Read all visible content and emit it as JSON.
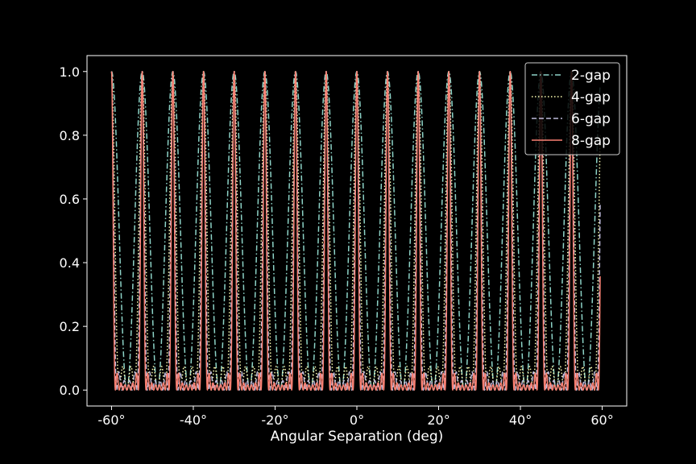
{
  "chart_data": {
    "type": "line",
    "title": "",
    "xlabel": "Angular Separation (deg)",
    "ylabel": "",
    "xlim": [
      -66,
      66
    ],
    "ylim": [
      -0.05,
      1.05
    ],
    "xticks": [
      -60,
      -40,
      -20,
      0,
      20,
      40,
      60
    ],
    "xtick_labels": [
      "-60°",
      "-40°",
      "-20°",
      "0°",
      "20°",
      "40°",
      "60°"
    ],
    "yticks": [
      0.0,
      0.2,
      0.4,
      0.6,
      0.8,
      1.0
    ],
    "ytick_labels": [
      "0.0",
      "0.2",
      "0.4",
      "0.6",
      "0.8",
      "1.0"
    ],
    "grid": false,
    "legend_position": "top-right",
    "x_range": [
      -60,
      59.5
    ],
    "peak_spacing_deg": 7.5,
    "series": [
      {
        "name": "2-gap",
        "gaps": 2,
        "color": "#8dd3c7",
        "dash": "dashdot"
      },
      {
        "name": "4-gap",
        "gaps": 4,
        "color": "#ffffb3",
        "dash": "dotted"
      },
      {
        "name": "6-gap",
        "gaps": 6,
        "color": "#bebada",
        "dash": "dashed"
      },
      {
        "name": "8-gap",
        "gaps": 8,
        "color": "#fa8072",
        "dash": "solid"
      }
    ]
  }
}
